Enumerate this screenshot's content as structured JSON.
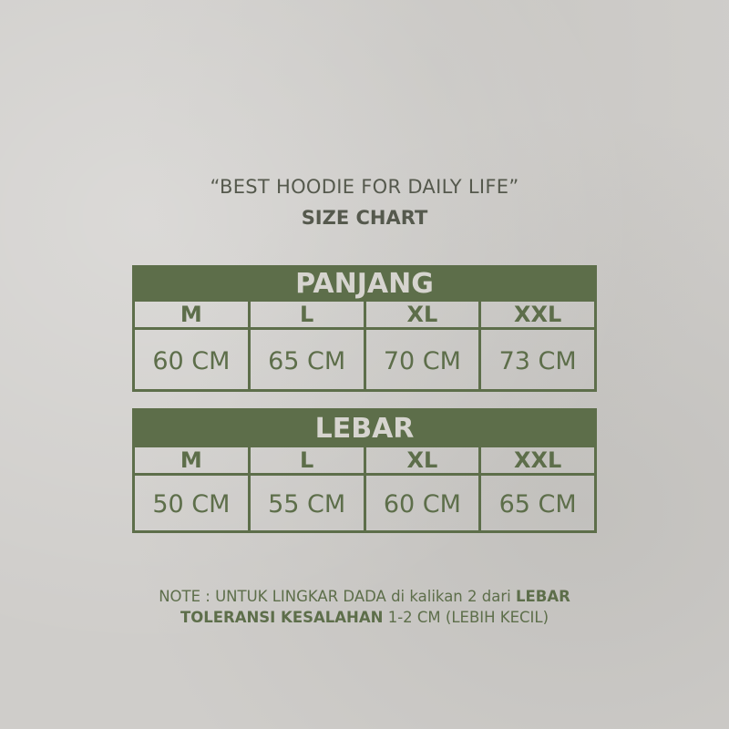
{
  "heading": {
    "tagline": "“BEST HOODIE FOR DAILY LIFE”",
    "title": "SIZE CHART"
  },
  "tables": [
    {
      "title": "PANJANG",
      "sizes": [
        "M",
        "L",
        "XL",
        "XXL"
      ],
      "values": [
        "60 CM",
        "65 CM",
        "70 CM",
        "73 CM"
      ]
    },
    {
      "title": "LEBAR",
      "sizes": [
        "M",
        "L",
        "XL",
        "XXL"
      ],
      "values": [
        "50 CM",
        "55 CM",
        "60 CM",
        "65 CM"
      ]
    }
  ],
  "note": {
    "line1_a": "NOTE : UNTUK LINGKAR DADA di kalikan 2 dari ",
    "line1_b": "LEBAR",
    "line2_a": "TOLERANSI KESALAHAN",
    "line2_b": " 1-2 CM (LEBIH KECIL)"
  },
  "colors": {
    "accent": "#5d6e4a",
    "background": "#cfcdca",
    "text": "#55594d"
  }
}
